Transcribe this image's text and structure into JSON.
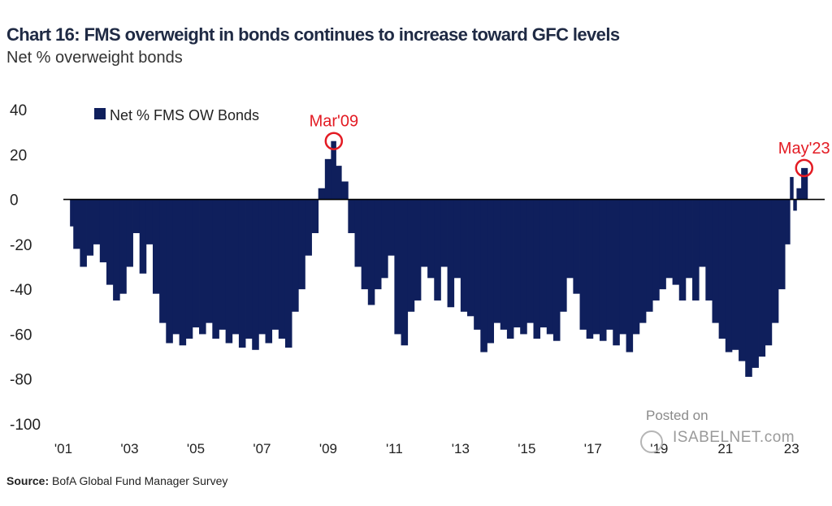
{
  "header": {
    "title": "Chart 16: FMS overweight in bonds continues to increase toward GFC levels",
    "subtitle": "Net % overweight bonds"
  },
  "footer": {
    "source_label": "Source:",
    "source_text": "BofA Global Fund Manager Survey"
  },
  "watermark": {
    "line1": "Posted on",
    "line2": "ISABELNET.com"
  },
  "colors": {
    "bars": "#0f1f5c",
    "highlight": "#e31b23",
    "zero_line": "#000000"
  },
  "chart_data": {
    "type": "bar",
    "title": "Chart 16: FMS overweight in bonds continues to increase toward GFC levels",
    "ylabel": "Net % overweight bonds",
    "ylim": [
      -100,
      40
    ],
    "yticks": [
      40,
      20,
      0,
      -20,
      -40,
      -60,
      -80,
      -100
    ],
    "xlim": [
      2001.0,
      2024.0
    ],
    "xticks": [
      {
        "label": "'01",
        "x": 2001.0
      },
      {
        "label": "'03",
        "x": 2003.0
      },
      {
        "label": "'05",
        "x": 2005.0
      },
      {
        "label": "'07",
        "x": 2007.0
      },
      {
        "label": "'09",
        "x": 2009.0
      },
      {
        "label": "'11",
        "x": 2011.0
      },
      {
        "label": "'13",
        "x": 2013.0
      },
      {
        "label": "'15",
        "x": 2015.0
      },
      {
        "label": "'17",
        "x": 2017.0
      },
      {
        "label": "'19",
        "x": 2019.0
      },
      {
        "label": "21",
        "x": 2021.0
      },
      {
        "label": "23",
        "x": 2023.0
      }
    ],
    "legend": {
      "label": "Net % FMS OW Bonds",
      "position": "top-left"
    },
    "grid": false,
    "series": [
      {
        "name": "Net % FMS OW Bonds",
        "points": [
          [
            2001.2,
            -12
          ],
          [
            2001.4,
            -22
          ],
          [
            2001.6,
            -30
          ],
          [
            2001.8,
            -25
          ],
          [
            2002.0,
            -20
          ],
          [
            2002.2,
            -28
          ],
          [
            2002.4,
            -38
          ],
          [
            2002.6,
            -45
          ],
          [
            2002.8,
            -42
          ],
          [
            2003.0,
            -30
          ],
          [
            2003.2,
            -15
          ],
          [
            2003.4,
            -33
          ],
          [
            2003.6,
            -20
          ],
          [
            2003.8,
            -42
          ],
          [
            2004.0,
            -55
          ],
          [
            2004.2,
            -64
          ],
          [
            2004.4,
            -60
          ],
          [
            2004.6,
            -65
          ],
          [
            2004.8,
            -62
          ],
          [
            2005.0,
            -57
          ],
          [
            2005.2,
            -60
          ],
          [
            2005.4,
            -55
          ],
          [
            2005.6,
            -62
          ],
          [
            2005.8,
            -58
          ],
          [
            2006.0,
            -64
          ],
          [
            2006.2,
            -60
          ],
          [
            2006.4,
            -66
          ],
          [
            2006.6,
            -62
          ],
          [
            2006.8,
            -67
          ],
          [
            2007.0,
            -60
          ],
          [
            2007.2,
            -64
          ],
          [
            2007.4,
            -58
          ],
          [
            2007.6,
            -62
          ],
          [
            2007.8,
            -66
          ],
          [
            2008.0,
            -50
          ],
          [
            2008.2,
            -40
          ],
          [
            2008.4,
            -25
          ],
          [
            2008.6,
            -15
          ],
          [
            2008.8,
            5
          ],
          [
            2009.0,
            18
          ],
          [
            2009.17,
            26
          ],
          [
            2009.3,
            15
          ],
          [
            2009.5,
            8
          ],
          [
            2009.7,
            -15
          ],
          [
            2009.9,
            -30
          ],
          [
            2010.1,
            -40
          ],
          [
            2010.3,
            -47
          ],
          [
            2010.5,
            -40
          ],
          [
            2010.7,
            -35
          ],
          [
            2010.9,
            -25
          ],
          [
            2011.1,
            -60
          ],
          [
            2011.3,
            -65
          ],
          [
            2011.5,
            -50
          ],
          [
            2011.7,
            -45
          ],
          [
            2011.9,
            -30
          ],
          [
            2012.1,
            -35
          ],
          [
            2012.3,
            -45
          ],
          [
            2012.5,
            -30
          ],
          [
            2012.7,
            -48
          ],
          [
            2012.9,
            -35
          ],
          [
            2013.1,
            -50
          ],
          [
            2013.3,
            -52
          ],
          [
            2013.5,
            -58
          ],
          [
            2013.7,
            -68
          ],
          [
            2013.9,
            -64
          ],
          [
            2014.1,
            -55
          ],
          [
            2014.3,
            -58
          ],
          [
            2014.5,
            -62
          ],
          [
            2014.7,
            -57
          ],
          [
            2014.9,
            -60
          ],
          [
            2015.1,
            -55
          ],
          [
            2015.3,
            -62
          ],
          [
            2015.5,
            -57
          ],
          [
            2015.7,
            -60
          ],
          [
            2015.9,
            -63
          ],
          [
            2016.1,
            -50
          ],
          [
            2016.3,
            -35
          ],
          [
            2016.5,
            -42
          ],
          [
            2016.7,
            -58
          ],
          [
            2016.9,
            -62
          ],
          [
            2017.1,
            -60
          ],
          [
            2017.3,
            -63
          ],
          [
            2017.5,
            -58
          ],
          [
            2017.7,
            -65
          ],
          [
            2017.9,
            -60
          ],
          [
            2018.1,
            -68
          ],
          [
            2018.3,
            -60
          ],
          [
            2018.5,
            -55
          ],
          [
            2018.7,
            -50
          ],
          [
            2018.9,
            -45
          ],
          [
            2019.1,
            -40
          ],
          [
            2019.3,
            -35
          ],
          [
            2019.5,
            -38
          ],
          [
            2019.7,
            -45
          ],
          [
            2019.9,
            -35
          ],
          [
            2020.1,
            -45
          ],
          [
            2020.3,
            -30
          ],
          [
            2020.5,
            -45
          ],
          [
            2020.7,
            -55
          ],
          [
            2020.9,
            -62
          ],
          [
            2021.1,
            -68
          ],
          [
            2021.3,
            -67
          ],
          [
            2021.5,
            -72
          ],
          [
            2021.7,
            -79
          ],
          [
            2021.9,
            -75
          ],
          [
            2022.1,
            -70
          ],
          [
            2022.3,
            -65
          ],
          [
            2022.5,
            -55
          ],
          [
            2022.7,
            -40
          ],
          [
            2022.9,
            -20
          ],
          [
            2023.0,
            10
          ],
          [
            2023.1,
            -5
          ],
          [
            2023.2,
            5
          ],
          [
            2023.38,
            14
          ]
        ]
      }
    ],
    "annotations": [
      {
        "label": "Mar'09",
        "x": 2009.17,
        "y": 26
      },
      {
        "label": "May'23",
        "x": 2023.38,
        "y": 14
      }
    ]
  }
}
